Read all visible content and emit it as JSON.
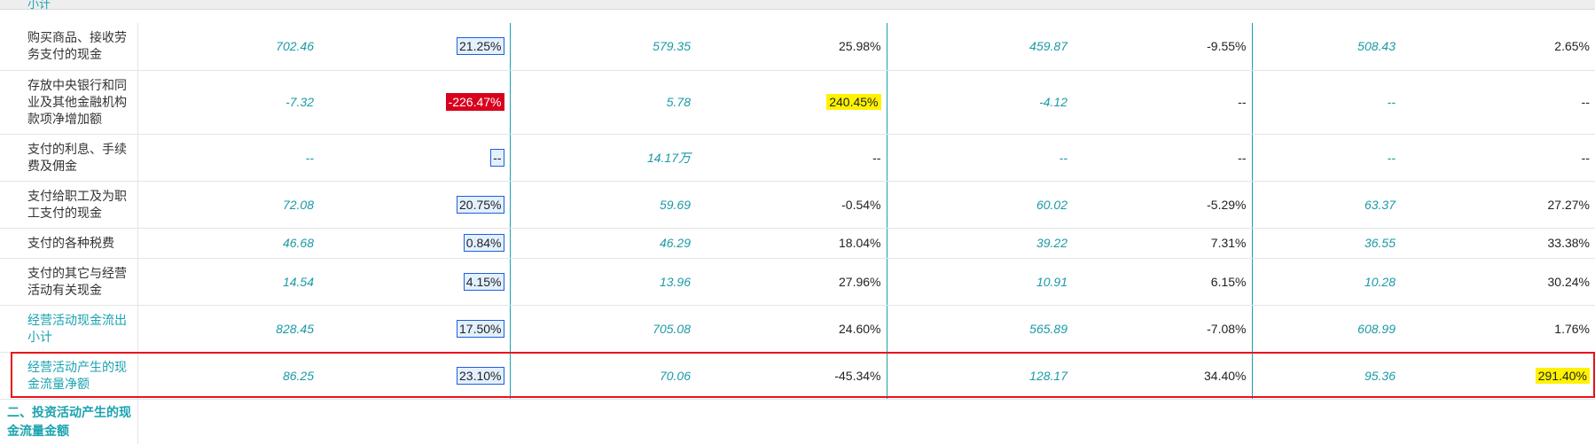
{
  "header": {
    "clipped_label": "小计"
  },
  "rows": [
    {
      "label": "购买商品、接收劳务支付的现金",
      "v1": "702.46",
      "p1": "21.25%",
      "v2": "579.35",
      "p2": "25.98%",
      "v3": "459.87",
      "p3": "-9.55%",
      "v4": "508.43",
      "p4": "2.65%"
    },
    {
      "label": "存放中央银行和同业及其他金融机构款项净增加额",
      "v1": "-7.32",
      "p1": "-226.47%",
      "v2": "5.78",
      "p2": "240.45%",
      "v3": "-4.12",
      "p3": "--",
      "v4": "--",
      "p4": "--"
    },
    {
      "label": "支付的利息、手续费及佣金",
      "v1": "--",
      "p1": "--",
      "v2": "14.17万",
      "p2": "--",
      "v3": "--",
      "p3": "--",
      "v4": "--",
      "p4": "--"
    },
    {
      "label": "支付给职工及为职工支付的现金",
      "v1": "72.08",
      "p1": "20.75%",
      "v2": "59.69",
      "p2": "-0.54%",
      "v3": "60.02",
      "p3": "-5.29%",
      "v4": "63.37",
      "p4": "27.27%"
    },
    {
      "label": "支付的各种税费",
      "v1": "46.68",
      "p1": "0.84%",
      "v2": "46.29",
      "p2": "18.04%",
      "v3": "39.22",
      "p3": "7.31%",
      "v4": "36.55",
      "p4": "33.38%"
    },
    {
      "label": "支付的其它与经营活动有关现金",
      "v1": "14.54",
      "p1": "4.15%",
      "v2": "13.96",
      "p2": "27.96%",
      "v3": "10.91",
      "p3": "6.15%",
      "v4": "10.28",
      "p4": "30.24%"
    },
    {
      "label": "经营活动现金流出小计",
      "v1": "828.45",
      "p1": "17.50%",
      "v2": "705.08",
      "p2": "24.60%",
      "v3": "565.89",
      "p3": "-7.08%",
      "v4": "608.99",
      "p4": "1.76%"
    },
    {
      "label": "经营活动产生的现金流量净额",
      "v1": "86.25",
      "p1": "23.10%",
      "v2": "70.06",
      "p2": "-45.34%",
      "v3": "128.17",
      "p3": "34.40%",
      "v4": "95.36",
      "p4": "291.40%"
    }
  ],
  "section": {
    "title": "二、投资活动产生的现金流量金额"
  }
}
